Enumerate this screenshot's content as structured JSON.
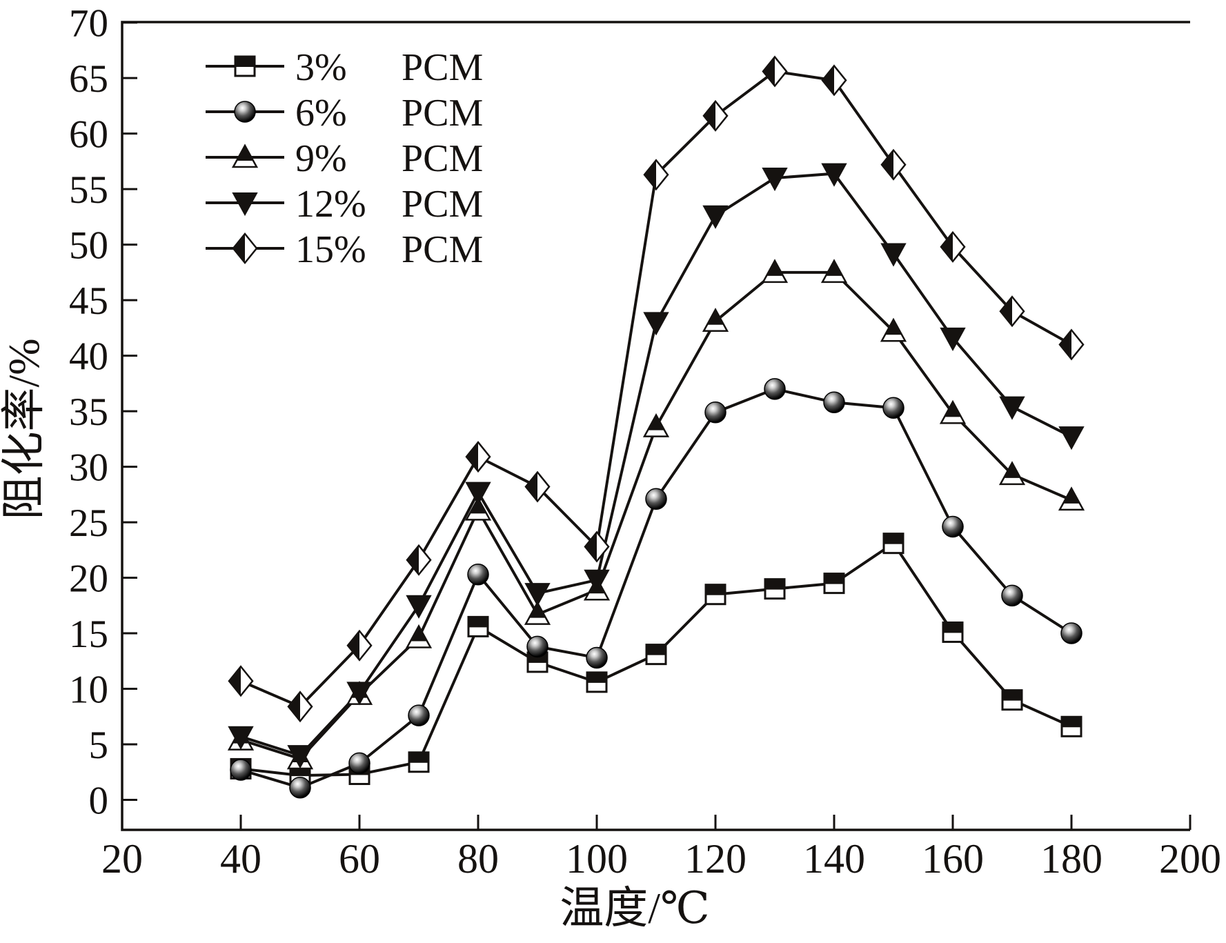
{
  "figure": {
    "background": "#ffffff",
    "ink_color": "#151210"
  },
  "chart_data": {
    "type": "line",
    "title": "",
    "xlabel": "温度/℃",
    "ylabel": "阻化率/%",
    "xlim": [
      20,
      200
    ],
    "ylim": [
      0,
      70
    ],
    "xticks": [
      20,
      40,
      60,
      80,
      100,
      120,
      140,
      160,
      180,
      200
    ],
    "yticks": [
      0,
      5,
      10,
      15,
      20,
      25,
      30,
      35,
      40,
      45,
      50,
      55,
      60,
      65,
      70
    ],
    "grid": false,
    "legend_position": "top-left-inside",
    "x": [
      40,
      50,
      60,
      70,
      80,
      90,
      100,
      110,
      120,
      130,
      140,
      150,
      160,
      170,
      180
    ],
    "series": [
      {
        "name": "3% PCM",
        "label_pct": "3%",
        "label_rest": "PCM",
        "marker": "half-filled-square",
        "values": [
          2.8,
          2.2,
          2.3,
          3.4,
          15.6,
          12.4,
          10.6,
          13.1,
          18.5,
          19.0,
          19.5,
          23.1,
          15.1,
          9.0,
          6.6
        ]
      },
      {
        "name": "6% PCM",
        "label_pct": "6%",
        "label_rest": "PCM",
        "marker": "sphere",
        "values": [
          2.7,
          1.1,
          3.3,
          7.6,
          20.3,
          13.8,
          12.8,
          27.1,
          34.9,
          37.0,
          35.8,
          35.3,
          24.6,
          18.4,
          15.0
        ]
      },
      {
        "name": "9% PCM",
        "label_pct": "9%",
        "label_rest": "PCM",
        "marker": "half-filled-triangle-up",
        "values": [
          5.4,
          3.7,
          9.5,
          14.6,
          26.1,
          16.7,
          18.9,
          33.6,
          43.1,
          47.5,
          47.5,
          42.2,
          34.8,
          29.3,
          27.0
        ]
      },
      {
        "name": "12% PCM",
        "label_pct": "12%",
        "label_rest": "PCM",
        "marker": "filled-triangle-down",
        "values": [
          5.7,
          4.0,
          9.7,
          17.5,
          27.7,
          18.6,
          19.8,
          43.0,
          52.6,
          56.0,
          56.4,
          49.2,
          41.6,
          35.4,
          32.7
        ]
      },
      {
        "name": "15% PCM",
        "label_pct": "15%",
        "label_rest": "PCM",
        "marker": "half-filled-diamond",
        "values": [
          10.7,
          8.4,
          13.9,
          21.6,
          30.9,
          28.2,
          22.8,
          56.3,
          61.6,
          65.6,
          64.8,
          57.2,
          49.8,
          44.0,
          41.0
        ]
      }
    ]
  }
}
